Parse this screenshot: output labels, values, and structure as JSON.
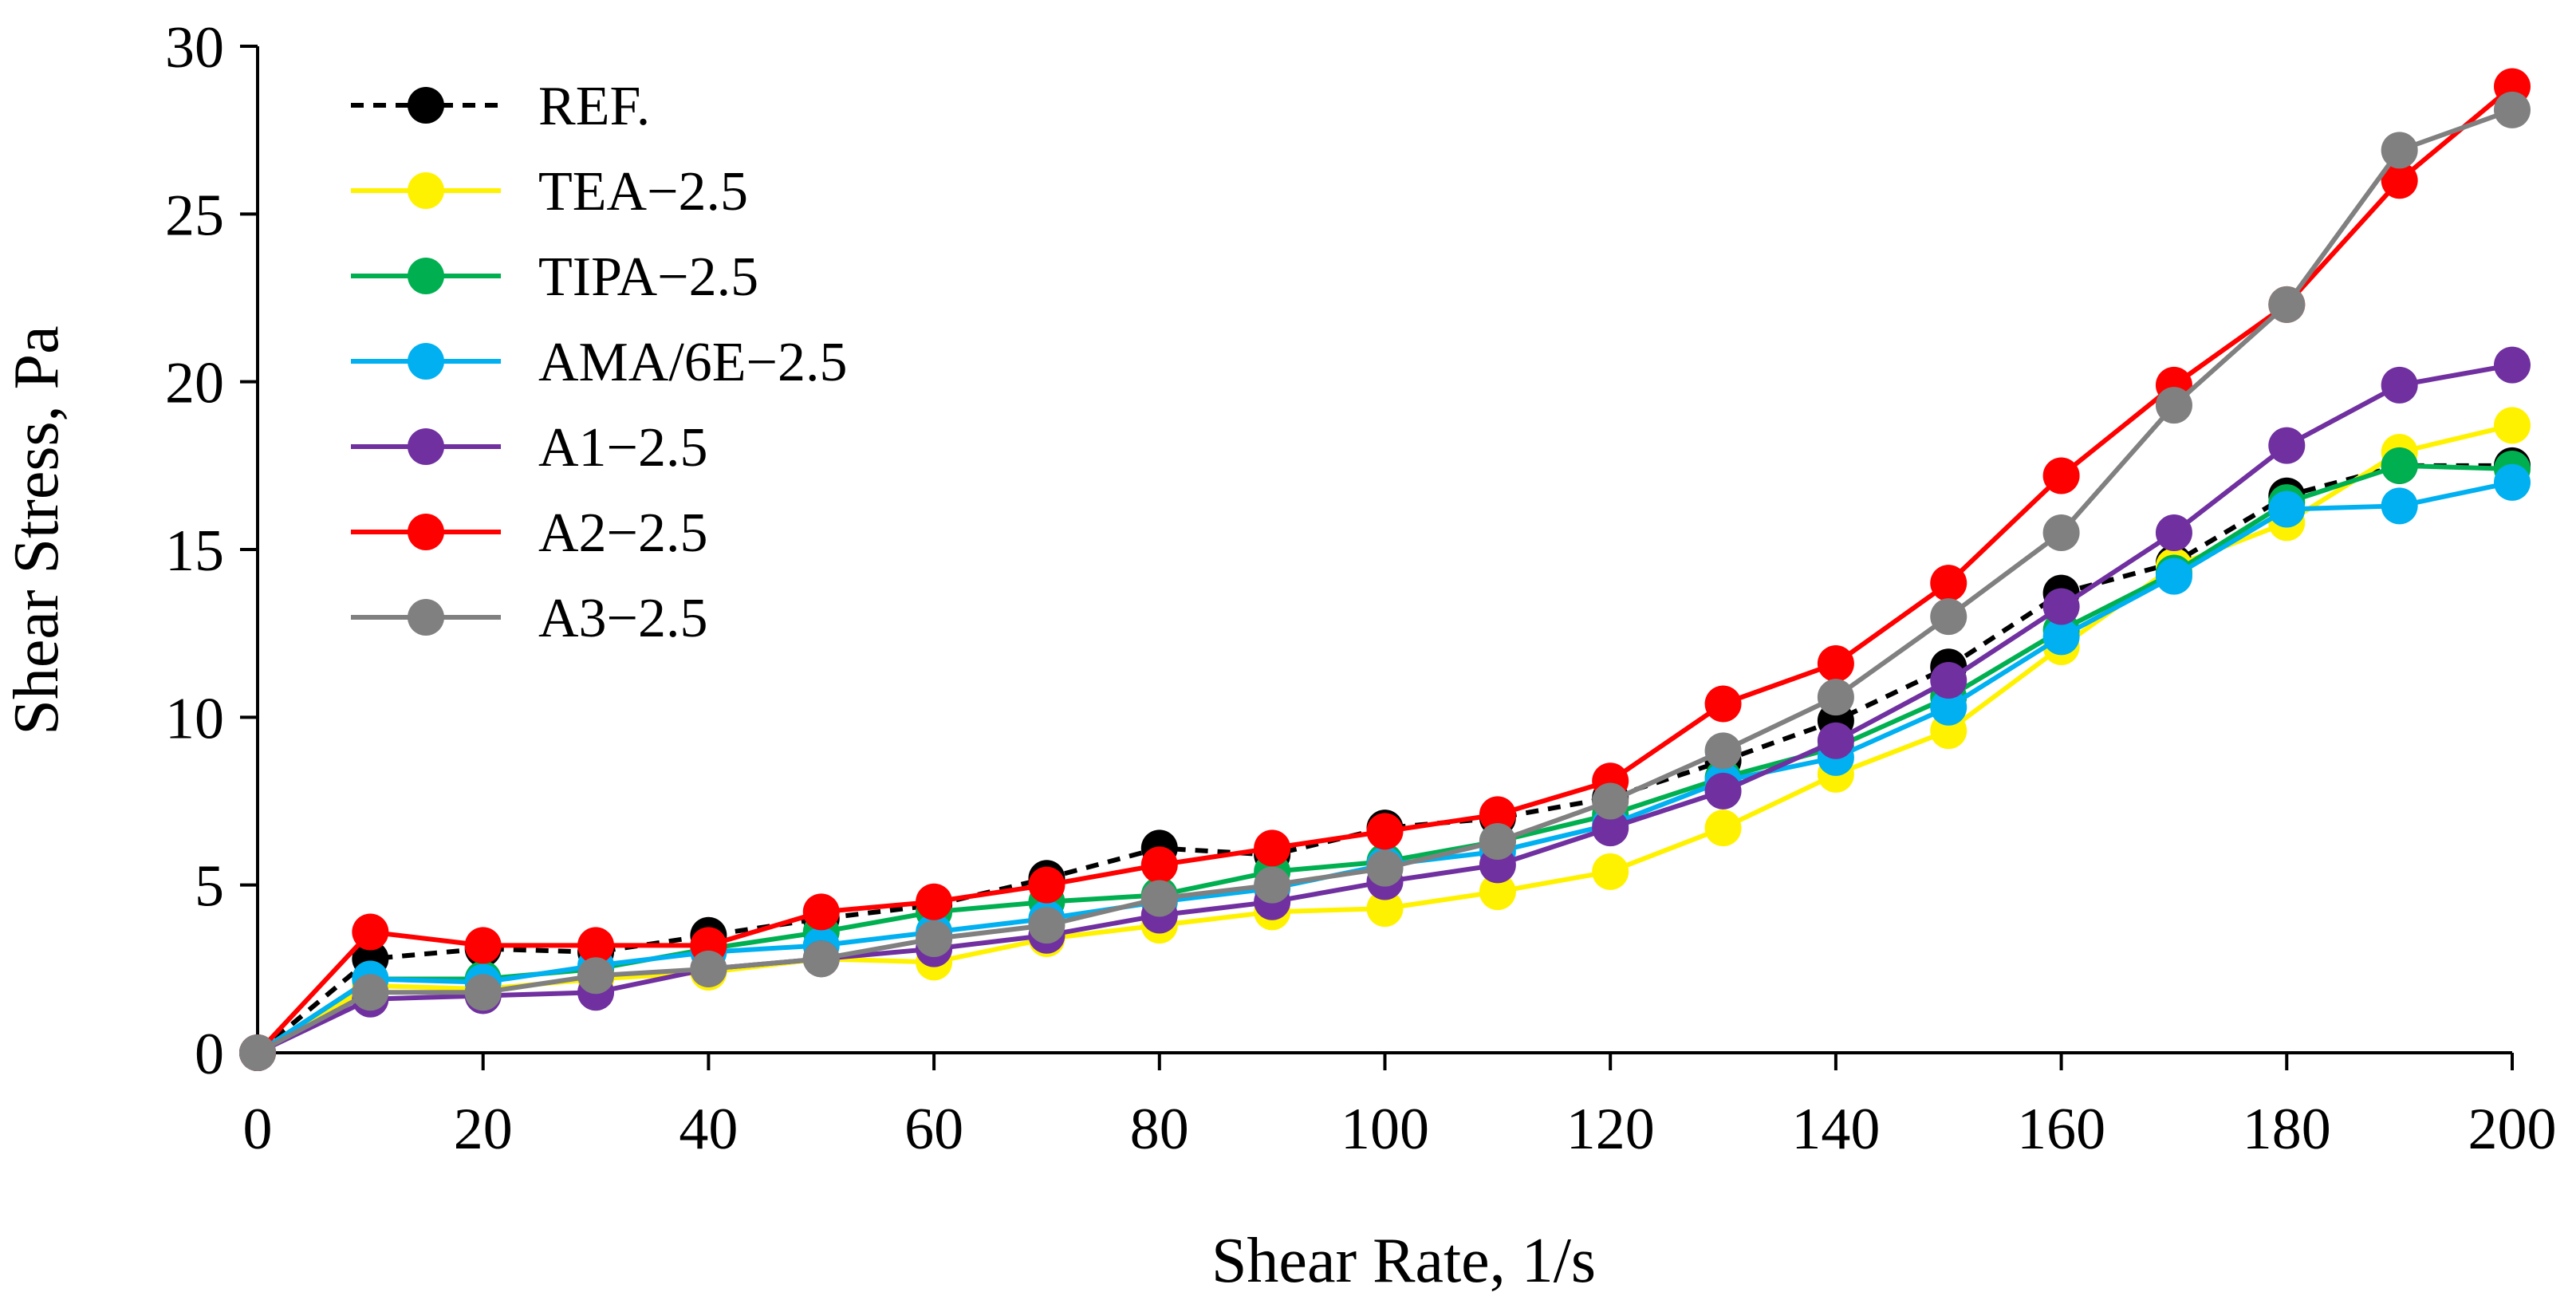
{
  "chart_data": {
    "type": "line",
    "xlabel": "Shear Rate, 1/s",
    "ylabel": "Shear Stress, Pa",
    "xlim": [
      0,
      200
    ],
    "ylim": [
      0,
      30
    ],
    "xticks": [
      0,
      20,
      40,
      60,
      80,
      100,
      120,
      140,
      160,
      180,
      200
    ],
    "yticks": [
      0,
      5,
      10,
      15,
      20,
      25,
      30
    ],
    "grid": false,
    "legend_position": "top-left",
    "x": [
      0,
      10,
      20,
      30,
      40,
      50,
      60,
      70,
      80,
      90,
      100,
      110,
      120,
      130,
      140,
      150,
      160,
      170,
      180,
      190,
      200
    ],
    "series": [
      {
        "name": "REF.",
        "color": "#000000",
        "dashed": true,
        "values": [
          0,
          2.8,
          3.1,
          3.0,
          3.5,
          4.0,
          4.4,
          5.2,
          6.1,
          5.9,
          6.7,
          7.0,
          7.6,
          8.7,
          9.9,
          11.5,
          13.7,
          14.6,
          16.6,
          17.5,
          17.5
        ]
      },
      {
        "name": "TEA−2.5",
        "color": "#FFF200",
        "dashed": false,
        "values": [
          0,
          2.0,
          1.9,
          2.2,
          2.4,
          2.8,
          2.7,
          3.4,
          3.8,
          4.2,
          4.3,
          4.8,
          5.4,
          6.7,
          8.3,
          9.6,
          12.1,
          14.5,
          15.8,
          17.9,
          18.7
        ]
      },
      {
        "name": "TIPA−2.5",
        "color": "#00B050",
        "dashed": false,
        "values": [
          0,
          2.2,
          2.2,
          2.5,
          3.1,
          3.6,
          4.2,
          4.5,
          4.7,
          5.4,
          5.7,
          6.3,
          7.1,
          8.2,
          9.1,
          10.6,
          12.6,
          14.3,
          16.4,
          17.5,
          17.4
        ]
      },
      {
        "name": "AMA/6E−2.5",
        "color": "#00B0F0",
        "dashed": false,
        "values": [
          0,
          2.2,
          2.1,
          2.6,
          3.0,
          3.2,
          3.6,
          4.0,
          4.5,
          4.9,
          5.6,
          6.0,
          6.8,
          8.1,
          8.8,
          10.3,
          12.4,
          14.2,
          16.2,
          16.3,
          17.0
        ]
      },
      {
        "name": "A1−2.5",
        "color": "#7030A0",
        "dashed": false,
        "values": [
          0,
          1.6,
          1.7,
          1.8,
          2.5,
          2.8,
          3.1,
          3.5,
          4.1,
          4.5,
          5.1,
          5.6,
          6.7,
          7.8,
          9.3,
          11.1,
          13.3,
          15.5,
          18.1,
          19.9,
          20.5
        ]
      },
      {
        "name": "A2−2.5",
        "color": "#FF0000",
        "dashed": false,
        "values": [
          0,
          3.6,
          3.2,
          3.2,
          3.2,
          4.2,
          4.5,
          5.0,
          5.6,
          6.1,
          6.6,
          7.1,
          8.1,
          10.4,
          11.6,
          14.0,
          17.2,
          19.9,
          22.3,
          26.0,
          28.8
        ]
      },
      {
        "name": "A3−2.5",
        "color": "#808080",
        "dashed": false,
        "values": [
          0,
          1.8,
          1.8,
          2.3,
          2.5,
          2.8,
          3.4,
          3.8,
          4.6,
          5.0,
          5.5,
          6.3,
          7.5,
          9.0,
          10.6,
          13.0,
          15.5,
          19.3,
          22.3,
          26.9,
          28.1
        ]
      }
    ]
  }
}
